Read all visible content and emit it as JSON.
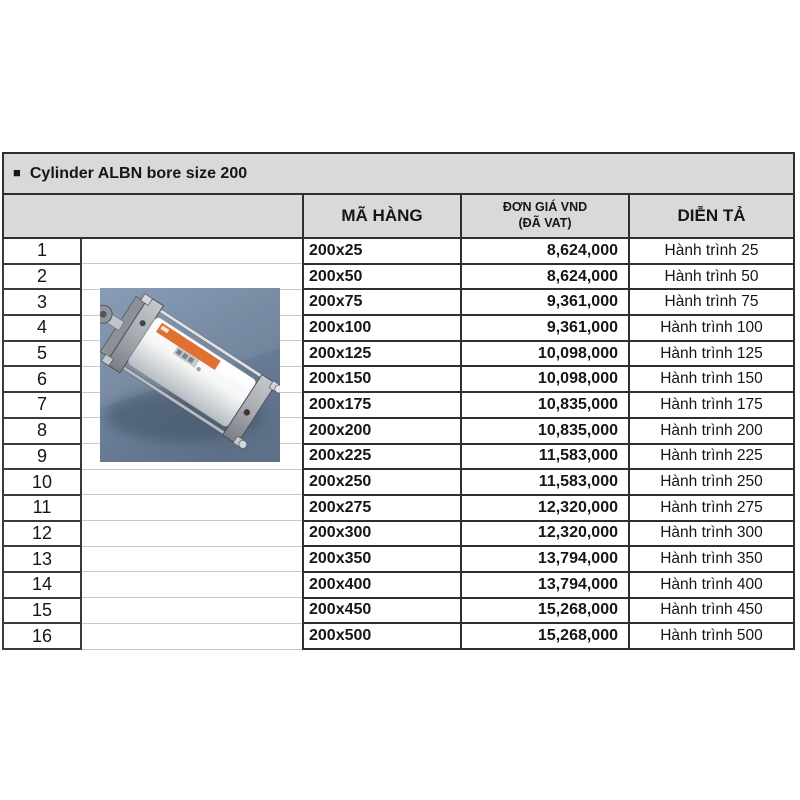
{
  "title": {
    "bullet": "■",
    "text": "Cylinder ALBN bore size 200"
  },
  "table": {
    "headers": {
      "ma_hang": "MÃ HÀNG",
      "don_gia_line1": "ĐƠN GIÁ VND",
      "don_gia_line2": "(ĐÃ VAT)",
      "dien_ta": "DIỄN TẢ"
    },
    "rows": [
      {
        "no": "1",
        "code": "200x25",
        "price": "8,624,000",
        "desc": "Hành trình 25"
      },
      {
        "no": "2",
        "code": "200x50",
        "price": "8,624,000",
        "desc": "Hành trình 50"
      },
      {
        "no": "3",
        "code": "200x75",
        "price": "9,361,000",
        "desc": "Hành trình 75"
      },
      {
        "no": "4",
        "code": "200x100",
        "price": "9,361,000",
        "desc": "Hành trình 100"
      },
      {
        "no": "5",
        "code": "200x125",
        "price": "10,098,000",
        "desc": "Hành trình 125"
      },
      {
        "no": "6",
        "code": "200x150",
        "price": "10,098,000",
        "desc": "Hành trình 150"
      },
      {
        "no": "7",
        "code": "200x175",
        "price": "10,835,000",
        "desc": "Hành trình 175"
      },
      {
        "no": "8",
        "code": "200x200",
        "price": "10,835,000",
        "desc": "Hành trình 200"
      },
      {
        "no": "9",
        "code": "200x225",
        "price": "11,583,000",
        "desc": "Hành trình 225"
      },
      {
        "no": "10",
        "code": "200x250",
        "price": "11,583,000",
        "desc": "Hành trình 250"
      },
      {
        "no": "11",
        "code": "200x275",
        "price": "12,320,000",
        "desc": "Hành trình 275"
      },
      {
        "no": "12",
        "code": "200x300",
        "price": "12,320,000",
        "desc": "Hành trình 300"
      },
      {
        "no": "13",
        "code": "200x350",
        "price": "13,794,000",
        "desc": "Hành trình 350"
      },
      {
        "no": "14",
        "code": "200x400",
        "price": "13,794,000",
        "desc": "Hành trình 400"
      },
      {
        "no": "15",
        "code": "200x450",
        "price": "15,268,000",
        "desc": "Hành trình 450"
      },
      {
        "no": "16",
        "code": "200x500",
        "price": "15,268,000",
        "desc": "Hành trình 500"
      }
    ]
  },
  "colors": {
    "header_bg": "#d9d9d9",
    "border_dark": "#2f2f2f",
    "gridline": "#c6c9cc",
    "text": "#161616",
    "photo_bg_top": "#8095b1",
    "photo_bg_bottom": "#5d7088",
    "cylinder_body": "#f4f5f4",
    "cylinder_label": "#e0702f",
    "metal": "#a8acb2"
  }
}
